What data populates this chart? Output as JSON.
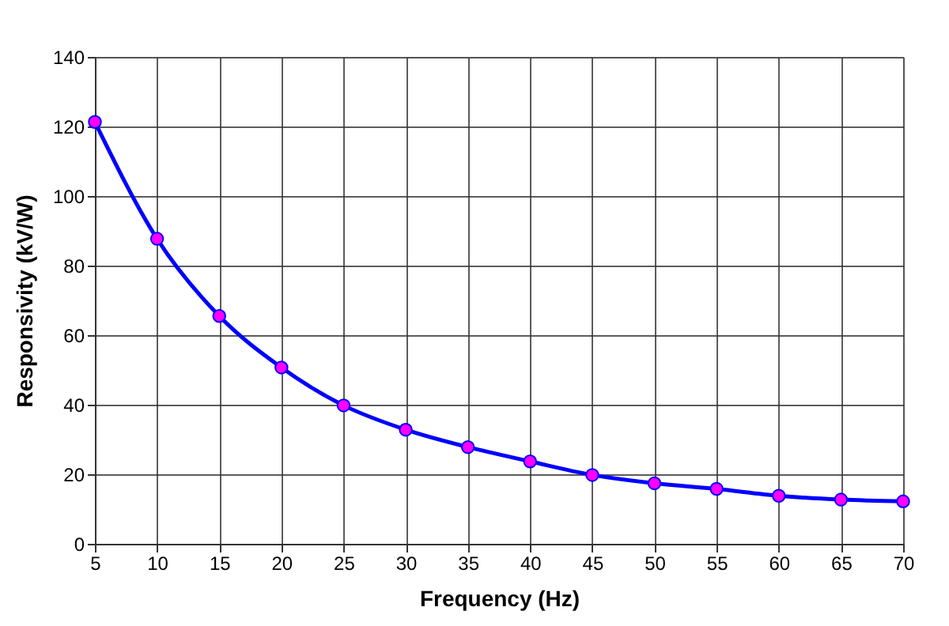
{
  "chart_data": {
    "type": "line",
    "xlabel": "Frequency (Hz)",
    "ylabel": "Responsivity (kV/W)",
    "x": [
      5,
      10,
      15,
      20,
      25,
      30,
      35,
      40,
      45,
      50,
      55,
      60,
      65,
      70
    ],
    "series": [
      {
        "color": "#0000ff",
        "values": [
          121.3,
          87.7,
          65.5,
          50.7,
          39.8,
          32.8,
          27.8,
          23.7,
          19.8,
          17.4,
          15.8,
          13.8,
          12.7,
          12.2
        ]
      }
    ],
    "xlim": [
      5,
      70
    ],
    "xticks": [
      5,
      10,
      15,
      20,
      25,
      30,
      35,
      40,
      45,
      50,
      55,
      60,
      65,
      70
    ],
    "ylim": [
      0,
      140
    ],
    "yticks": [
      0,
      20,
      40,
      60,
      80,
      100,
      120,
      140
    ],
    "grid": true,
    "marker": "circle",
    "line_style": "solid"
  }
}
